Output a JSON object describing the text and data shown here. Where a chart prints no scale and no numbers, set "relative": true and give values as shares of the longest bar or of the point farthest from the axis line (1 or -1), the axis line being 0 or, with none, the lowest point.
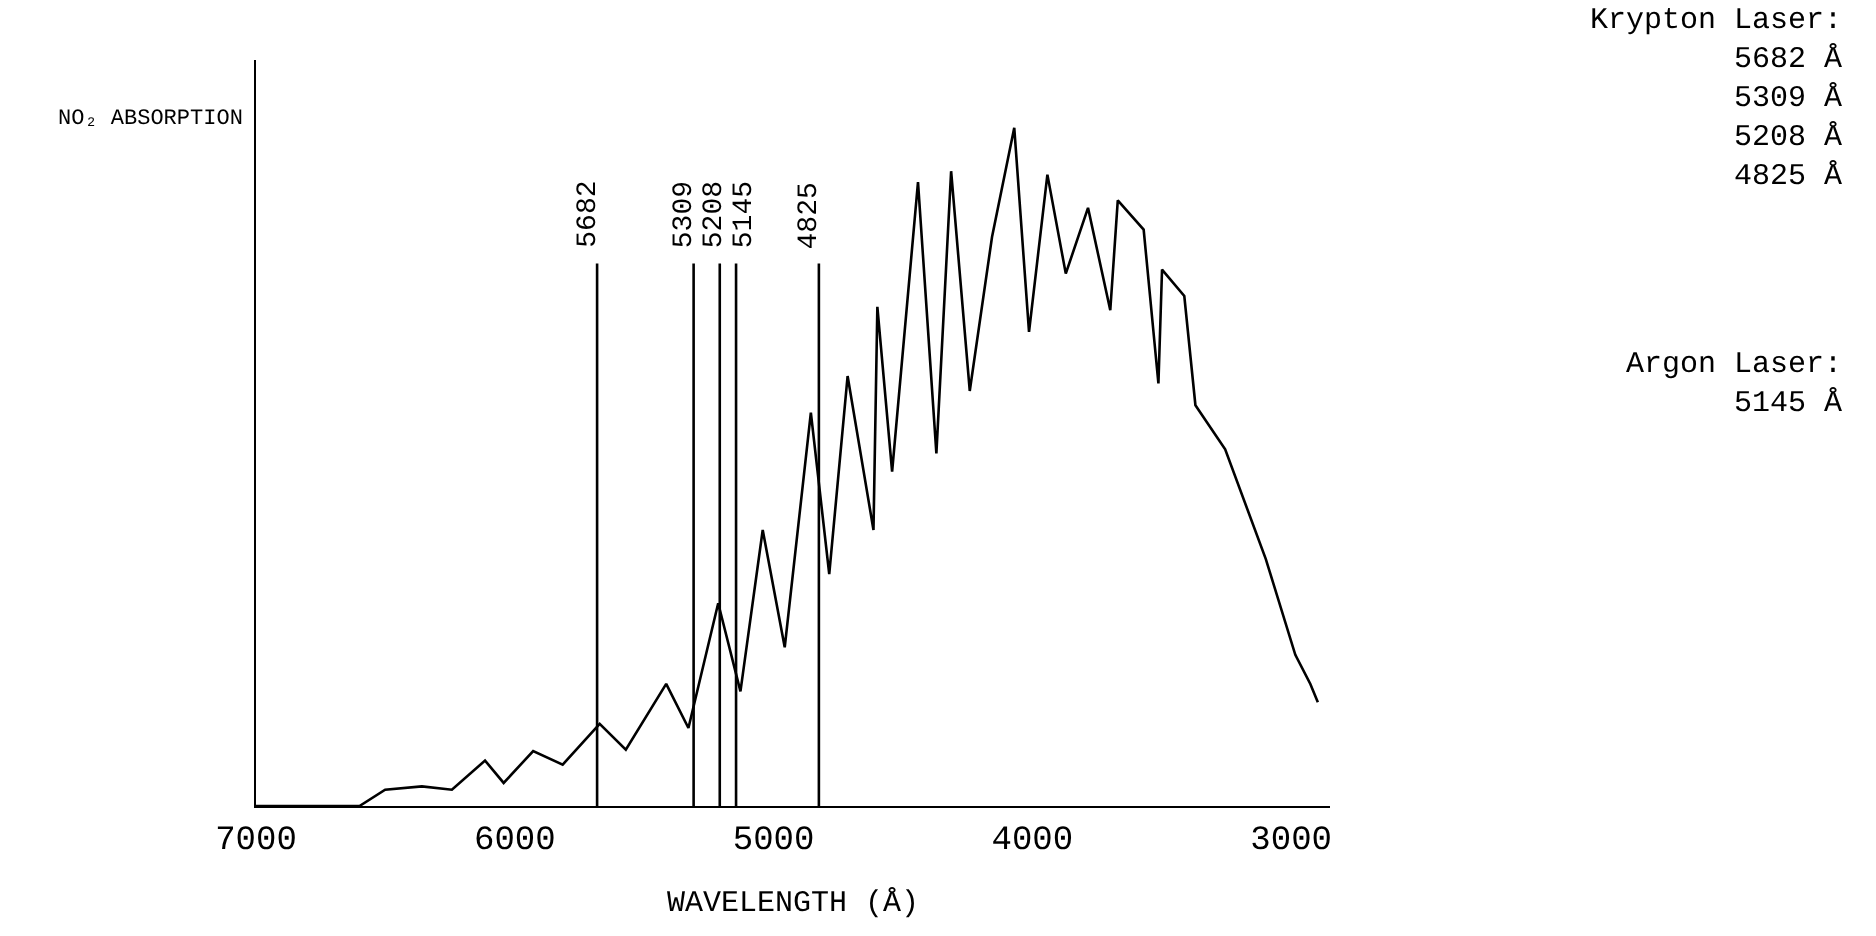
{
  "chart_data": {
    "type": "line",
    "relative": true,
    "xlabel": "WAVELENGTH (Å)",
    "ylabel": "NO₂ ABSORPTION",
    "x": [
      7000,
      6600,
      6501,
      6359,
      6243,
      6115,
      6043,
      5929,
      5815,
      5672,
      5571,
      5415,
      5329,
      5214,
      5128,
      5042,
      4957,
      4856,
      4785,
      4714,
      4614,
      4599,
      4542,
      4442,
      4371,
      4314,
      4242,
      4156,
      4070,
      4013,
      3942,
      3871,
      3785,
      3699,
      3670,
      3570,
      3513,
      3499,
      3413,
      3370,
      3255,
      3098,
      2984,
      2926,
      2897
    ],
    "series": [
      {
        "color": "#000000",
        "values": [
          0,
          0,
          0.024,
          0.029,
          0.024,
          0.067,
          0.034,
          0.081,
          0.061,
          0.121,
          0.083,
          0.18,
          0.115,
          0.299,
          0.169,
          0.407,
          0.234,
          0.58,
          0.342,
          0.634,
          0.407,
          0.736,
          0.493,
          0.92,
          0.52,
          0.936,
          0.612,
          0.839,
          1.0,
          0.699,
          0.931,
          0.785,
          0.882,
          0.731,
          0.893,
          0.85,
          0.623,
          0.791,
          0.752,
          0.591,
          0.526,
          0.364,
          0.223,
          0.18,
          0.153
        ]
      }
    ],
    "xlim": [
      7000,
      2850
    ],
    "xticks": [
      7000,
      6000,
      5000,
      4000,
      3000
    ],
    "marker": "none",
    "line_style": "solid",
    "ref_lines": [
      {
        "axis": "x",
        "value": 5682,
        "label": "5682",
        "color": "#000000"
      },
      {
        "axis": "x",
        "value": 5309,
        "label": "5309",
        "color": "#000000"
      },
      {
        "axis": "x",
        "value": 5208,
        "label": "5208",
        "color": "#000000"
      },
      {
        "axis": "x",
        "value": 5145,
        "label": "5145",
        "color": "#000000"
      },
      {
        "axis": "x",
        "value": 4825,
        "label": "4825",
        "color": "#000000"
      }
    ],
    "annotations": [
      "Krypton Laser:\n5682 Å\n5309 Å\n5208 Å\n4825 Å",
      "Argon Laser:\n5145 Å"
    ]
  }
}
